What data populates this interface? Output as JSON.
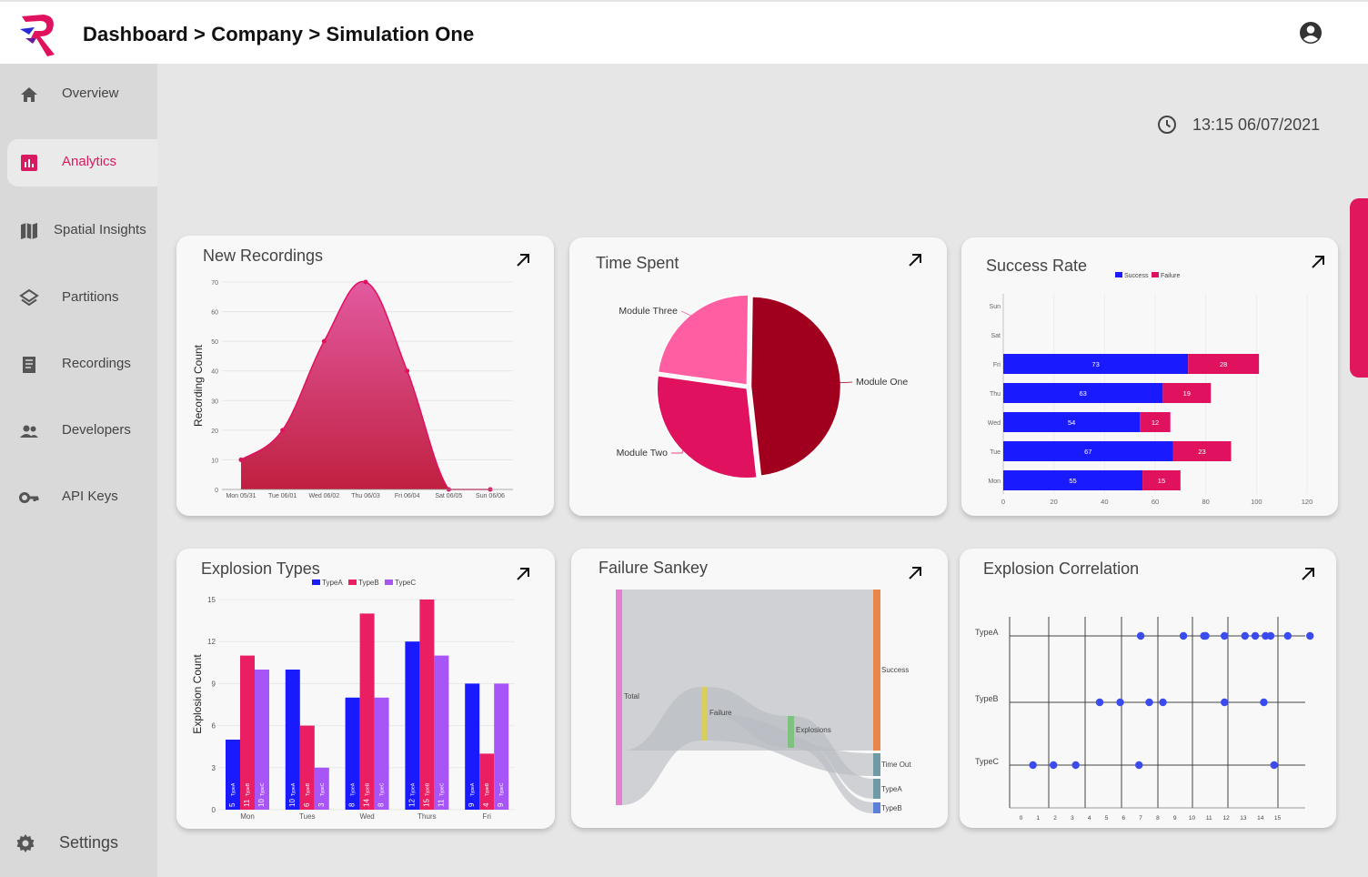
{
  "header": {
    "breadcrumb": [
      "Dashboard",
      "Company",
      "Simulation One"
    ],
    "separator": ">"
  },
  "sidebar": {
    "items": [
      {
        "label": "Overview",
        "icon": "home-icon"
      },
      {
        "label": "Analytics",
        "icon": "analytics-icon",
        "active": true
      },
      {
        "label": "Spatial Insights",
        "icon": "map-icon"
      },
      {
        "label": "Partitions",
        "icon": "layers-icon"
      },
      {
        "label": "Recordings",
        "icon": "recordings-icon"
      },
      {
        "label": "Developers",
        "icon": "developers-icon"
      },
      {
        "label": "API Keys",
        "icon": "key-icon"
      }
    ],
    "settings_label": "Settings"
  },
  "datetime": "13:15 06/07/2021",
  "colors": {
    "accent": "#d81b60",
    "blue": "#1a1aff",
    "pink": "#e91e63",
    "purple": "#a855f7"
  },
  "cards": {
    "new_recordings": {
      "title": "New Recordings"
    },
    "time_spent": {
      "title": "Time Spent"
    },
    "success_rate": {
      "title": "Success Rate"
    },
    "explosion_types": {
      "title": "Explosion Types"
    },
    "failure_sankey": {
      "title": "Failure Sankey"
    },
    "explosion_correlation": {
      "title": "Explosion Correlation"
    }
  },
  "chart_data": [
    {
      "id": "new_recordings",
      "type": "area",
      "title": "New Recordings",
      "ylabel": "Recording Count",
      "categories": [
        "Mon 05/31",
        "Tue 06/01",
        "Wed 06/02",
        "Thu 06/03",
        "Fri 06/04",
        "Sat 06/05",
        "Sun 06/06"
      ],
      "values": [
        10,
        20,
        50,
        70,
        40,
        0,
        0
      ],
      "ylim": [
        0,
        70
      ],
      "yticks": [
        0,
        10,
        20,
        30,
        40,
        50,
        60,
        70
      ]
    },
    {
      "id": "time_spent",
      "type": "pie",
      "title": "Time Spent",
      "labels": [
        "Module One",
        "Module Two",
        "Module Three"
      ],
      "values": [
        48,
        29,
        23
      ],
      "colors": [
        "#a0001e",
        "#e0115f",
        "#ff5fa2"
      ]
    },
    {
      "id": "success_rate",
      "type": "bar",
      "orientation": "horizontal",
      "stacked": true,
      "title": "Success Rate",
      "categories": [
        "Mon",
        "Tue",
        "Wed",
        "Thu",
        "Fri",
        "Sat",
        "Sun"
      ],
      "series": [
        {
          "name": "Success",
          "values": [
            55,
            67,
            54,
            63,
            73,
            0,
            0
          ],
          "color": "#1a1aff"
        },
        {
          "name": "Failure",
          "values": [
            15,
            23,
            12,
            19,
            28,
            0,
            0
          ],
          "color": "#e0115f"
        }
      ],
      "xlim": [
        0,
        120
      ],
      "xticks": [
        0,
        20,
        40,
        60,
        80,
        100,
        120
      ]
    },
    {
      "id": "explosion_types",
      "type": "bar",
      "title": "Explosion Types",
      "ylabel": "Explosion Count",
      "categories": [
        "Mon",
        "Tues",
        "Wed",
        "Thurs",
        "Fri"
      ],
      "series": [
        {
          "name": "TypeA",
          "values": [
            5,
            10,
            8,
            12,
            9
          ],
          "color": "#1a1aff"
        },
        {
          "name": "TypeB",
          "values": [
            11,
            6,
            14,
            15,
            4
          ],
          "color": "#e91e63"
        },
        {
          "name": "TypeC",
          "values": [
            10,
            3,
            8,
            11,
            9
          ],
          "color": "#a855f7"
        }
      ],
      "ylim": [
        0,
        15
      ],
      "yticks": [
        0,
        3,
        6,
        9,
        12,
        15
      ]
    },
    {
      "id": "failure_sankey",
      "type": "sankey",
      "title": "Failure Sankey",
      "nodes": [
        "Total",
        "Failure",
        "Explosions",
        "Success",
        "Time Out",
        "TypeA",
        "TypeB"
      ],
      "links": [
        {
          "source": "Total",
          "target": "Success",
          "value": 73
        },
        {
          "source": "Total",
          "target": "Failure",
          "value": 27
        },
        {
          "source": "Failure",
          "target": "Explosions",
          "value": 15
        },
        {
          "source": "Failure",
          "target": "Time Out",
          "value": 12
        },
        {
          "source": "Explosions",
          "target": "TypeA",
          "value": 9
        },
        {
          "source": "Explosions",
          "target": "TypeB",
          "value": 6
        }
      ]
    },
    {
      "id": "explosion_correlation",
      "type": "scatter",
      "title": "Explosion Correlation",
      "categories": [
        "TypeA",
        "TypeB",
        "TypeC"
      ],
      "xticks": [
        0,
        1,
        2,
        3,
        4,
        5,
        6,
        7,
        8,
        9,
        10,
        11,
        12,
        13,
        14,
        15
      ],
      "points": {
        "TypeA": [
          7,
          9.5,
          10.7,
          10.8,
          11.9,
          13.1,
          13.7,
          14.3,
          14.6,
          15.6,
          16.9
        ],
        "TypeB": [
          4.6,
          5.8,
          7.5,
          8.3,
          11.9,
          14.2
        ],
        "TypeC": [
          0.7,
          1.9,
          3.2,
          6.9,
          14.8
        ]
      }
    }
  ]
}
